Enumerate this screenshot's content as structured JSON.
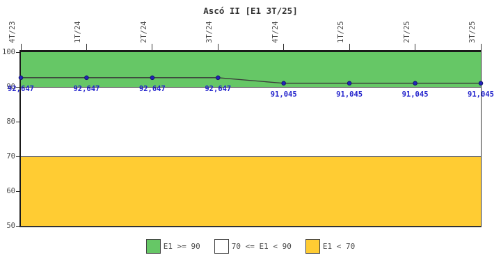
{
  "chart_data": {
    "type": "line",
    "title": "Ascó II [E1 3T/25]",
    "x_tick_labels": [
      "4T/23",
      "1T/24",
      "2T/24",
      "3T/24",
      "4T/24",
      "1T/25",
      "2T/25",
      "3T/25"
    ],
    "y_ticks": [
      100,
      90,
      80,
      70,
      60,
      50
    ],
    "ylim": [
      50,
      100
    ],
    "grid": false,
    "series": [
      {
        "name": "E1",
        "values": [
          92.647,
          92.647,
          92.647,
          92.647,
          91.045,
          91.045,
          91.045,
          91.045
        ],
        "point_labels": [
          "92,647",
          "92,647",
          "92,647",
          "92,647",
          "91,045",
          "91,045",
          "91,045",
          "91,045"
        ]
      }
    ],
    "bands": [
      {
        "label": "E1 >= 90",
        "range": [
          90,
          100
        ],
        "color": "#66C766"
      },
      {
        "label": "70 <= E1 < 90",
        "range": [
          70,
          90
        ],
        "color": "#FFFFFF"
      },
      {
        "label": "E1 < 70",
        "range": [
          50,
          70
        ],
        "color": "#FFCC33"
      }
    ],
    "legend": {
      "position": "bottom",
      "entries": [
        {
          "label": "E1 >= 90",
          "color": "#66C766"
        },
        {
          "label": "70 <= E1 < 90",
          "color": "#FFFFFF"
        },
        {
          "label": "E1 < 70",
          "color": "#FFCC33"
        }
      ]
    },
    "colors": {
      "line": "#3a3a3a",
      "point": "#2222bb",
      "point_border": "#15156b",
      "value_label": "#2222cc",
      "axis": "#1a1a1a",
      "tick_text": "#4a4a4a"
    }
  }
}
